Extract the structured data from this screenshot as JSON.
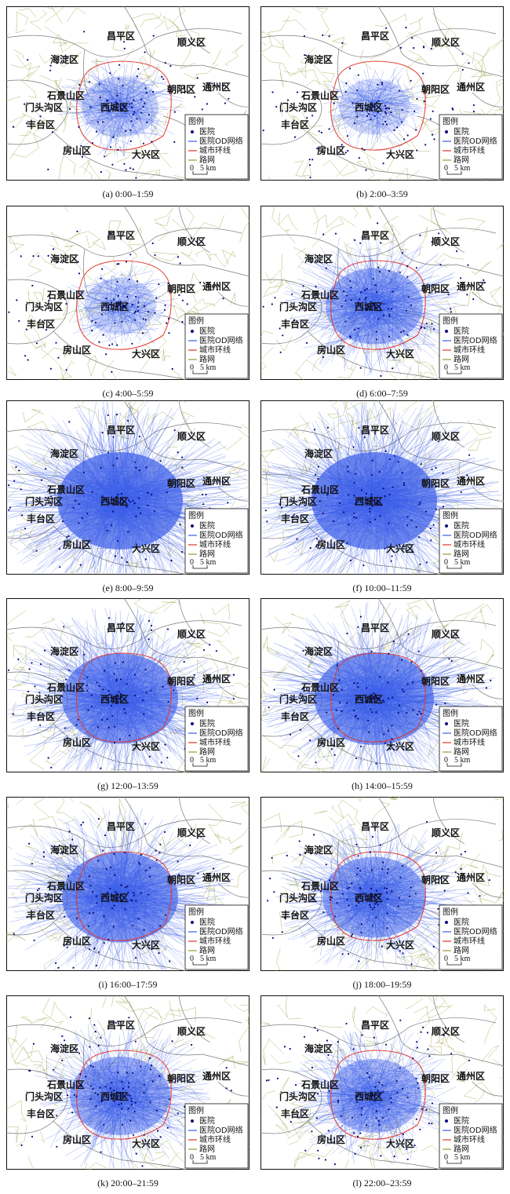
{
  "figure": {
    "panels": [
      {
        "caption": "(a) 0:00–1:59",
        "density": 0.22,
        "ring_visible": true
      },
      {
        "caption": "(b) 2:00–3:59",
        "density": 0.12,
        "ring_visible": true
      },
      {
        "caption": "(c) 4:00–5:59",
        "density": 0.14,
        "ring_visible": true
      },
      {
        "caption": "(d) 6:00–7:59",
        "density": 0.55,
        "ring_visible": true
      },
      {
        "caption": "(e) 8:00–9:59",
        "density": 1.0,
        "ring_visible": false
      },
      {
        "caption": "(f) 10:00–11:59",
        "density": 1.0,
        "ring_visible": false
      },
      {
        "caption": "(g) 12:00–13:59",
        "density": 0.85,
        "ring_visible": true
      },
      {
        "caption": "(h) 14:00–15:59",
        "density": 0.9,
        "ring_visible": true
      },
      {
        "caption": "(i) 16:00–17:59",
        "density": 0.85,
        "ring_visible": true
      },
      {
        "caption": "(j) 18:00–19:59",
        "density": 0.65,
        "ring_visible": true
      },
      {
        "caption": "(k) 20:00–21:59",
        "density": 0.6,
        "ring_visible": true
      },
      {
        "caption": "(l) 22:00–23:59",
        "density": 0.5,
        "ring_visible": true
      }
    ],
    "districts": [
      "昌平区",
      "顺义区",
      "海淀区",
      "通州区",
      "朝阳区",
      "石景山区",
      "门头沟区",
      "西城区",
      "丰台区",
      "房山区",
      "大兴区"
    ],
    "legend": {
      "title": "图例",
      "items": [
        {
          "label": "医院",
          "symbol": "dot"
        },
        {
          "label": "医院OD网络",
          "symbol": "blue-line"
        },
        {
          "label": "城市环线",
          "symbol": "red-line"
        },
        {
          "label": "路网",
          "symbol": "olive-line"
        }
      ],
      "scale_zero": "0",
      "scale_label": "5 km"
    }
  },
  "colors": {
    "od_network": "#3a5de8",
    "hospital": "#0a0a7a",
    "ring_road": "#e0352a",
    "road_network": "#9a9a3a",
    "district_boundary": "#7a7a7a"
  }
}
